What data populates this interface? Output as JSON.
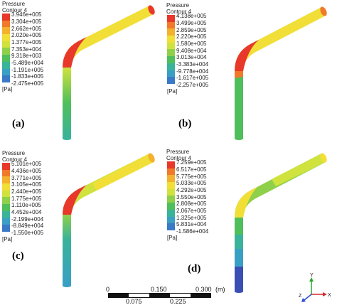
{
  "panels": [
    {
      "tag": "(a)",
      "legend_title": "Pressure\nContour 4",
      "labels": [
        "3.946e+005",
        "3.304e+005",
        "2.662e+005",
        "2.020e+005",
        "1.377e+005",
        "7.353e+004",
        "9.318e+003",
        "-5.489e+004",
        "-1.191e+005",
        "-1.833e+005",
        "-2.475e+005"
      ],
      "unit": "[Pa]"
    },
    {
      "tag": "(b)",
      "legend_title": "Pressure\nContour 4",
      "labels": [
        "4.138e+005",
        "3.499e+005",
        "2.859e+005",
        "2.220e+005",
        "1.580e+005",
        "9.408e+004",
        "3.013e+004",
        "-3.383e+004",
        "-9.778e+004",
        "-1.617e+005",
        "-2.257e+005"
      ],
      "unit": "[Pa]"
    },
    {
      "tag": "(c)",
      "legend_title": "Pressure\nContour 4",
      "labels": [
        "5.101e+005",
        "4.436e+005",
        "3.771e+005",
        "3.105e+005",
        "2.440e+005",
        "1.775e+005",
        "1.110e+005",
        "4.452e+004",
        "-2.199e+004",
        "-8.849e+004",
        "-1.550e+005"
      ],
      "unit": "[Pa]"
    },
    {
      "tag": "(d)",
      "legend_title": "Pressure\nContour 4",
      "labels": [
        "7.259e+005",
        "6.517e+005",
        "5.775e+005",
        "5.033e+005",
        "4.292e+005",
        "3.550e+005",
        "2.808e+005",
        "2.067e+005",
        "1.325e+005",
        "5.831e+004",
        "-1.586e+004"
      ],
      "unit": "[Pa]"
    }
  ],
  "colormap": [
    "#e8382a",
    "#f07a2a",
    "#f3b12d",
    "#f1df38",
    "#cfe23e",
    "#8fd04a",
    "#4fbf5b",
    "#39b39a",
    "#3a9fc4",
    "#3a79c6",
    "#3a4fb4"
  ],
  "scale": {
    "top_labels": [
      "0",
      "0.150",
      "0.300",
      "(m)"
    ],
    "bottom_labels": [
      "0.075",
      "0.225"
    ]
  },
  "axes": {
    "y": "Y",
    "x": "X",
    "z": "Z"
  }
}
